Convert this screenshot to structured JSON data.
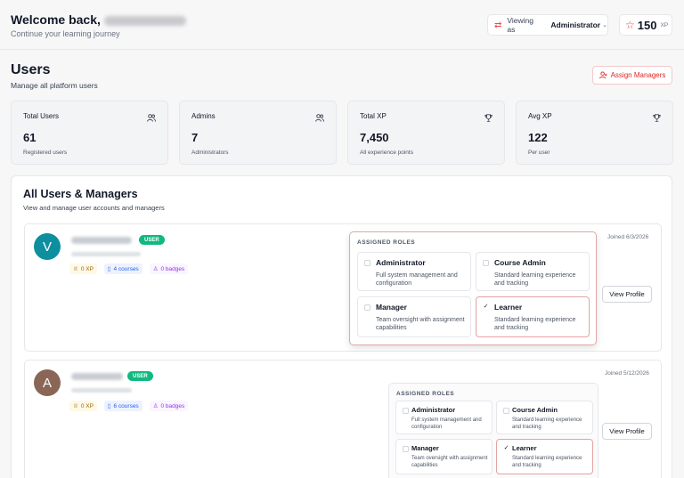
{
  "header": {
    "welcome": "Welcome back,",
    "subtitle": "Continue your learning journey",
    "viewing_label": "Viewing as",
    "viewing_value": "Administrator",
    "xp_value": "150",
    "xp_unit": "XP"
  },
  "page": {
    "title": "Users",
    "subtitle": "Manage all platform users",
    "assign_button": "Assign Managers"
  },
  "stats": [
    {
      "title": "Total Users",
      "value": "61",
      "sub": "Registered users",
      "icon": "users-icon"
    },
    {
      "title": "Admins",
      "value": "7",
      "sub": "Administrators",
      "icon": "users-icon"
    },
    {
      "title": "Total XP",
      "value": "7,450",
      "sub": "All experience points",
      "icon": "trophy-icon"
    },
    {
      "title": "Avg XP",
      "value": "122",
      "sub": "Per user",
      "icon": "trophy-icon"
    }
  ],
  "panel": {
    "title": "All Users & Managers",
    "subtitle": "View and manage user accounts and managers"
  },
  "users": [
    {
      "initial": "V",
      "avatar_color": "#0e8fa0",
      "badge": "USER",
      "xp": "0 XP",
      "courses": "4 courses",
      "badges": "0 badges",
      "joined": "Joined 6/3/2026",
      "view_profile": "View Profile",
      "roles_title": "ASSIGNED ROLES",
      "roles": [
        {
          "name": "Administrator",
          "desc": "Full system management and configuration",
          "checked": false
        },
        {
          "name": "Course Admin",
          "desc": "Standard learning experience and tracking",
          "checked": false
        },
        {
          "name": "Manager",
          "desc": "Team oversight with assignment capabilities",
          "checked": false
        },
        {
          "name": "Learner",
          "desc": "Standard learning experience and tracking",
          "checked": true,
          "mark": "✓"
        }
      ]
    },
    {
      "initial": "A",
      "avatar_color": "#8a6656",
      "badge": "USER",
      "xp": "0 XP",
      "courses": "6 courses",
      "badges": "0 badges",
      "joined": "Joined 5/12/2026",
      "view_profile": "View Profile",
      "roles_title": "ASSIGNED ROLES",
      "roles": [
        {
          "name": "Administrator",
          "desc": "Full system management and configuration",
          "checked": false
        },
        {
          "name": "Course Admin",
          "desc": "Standard learning experience and tracking",
          "checked": false
        },
        {
          "name": "Manager",
          "desc": "Team oversight with assignment capabilities",
          "checked": false
        },
        {
          "name": "Learner",
          "desc": "Standard learning experience and tracking",
          "checked": true,
          "mark": "✓"
        }
      ]
    }
  ]
}
